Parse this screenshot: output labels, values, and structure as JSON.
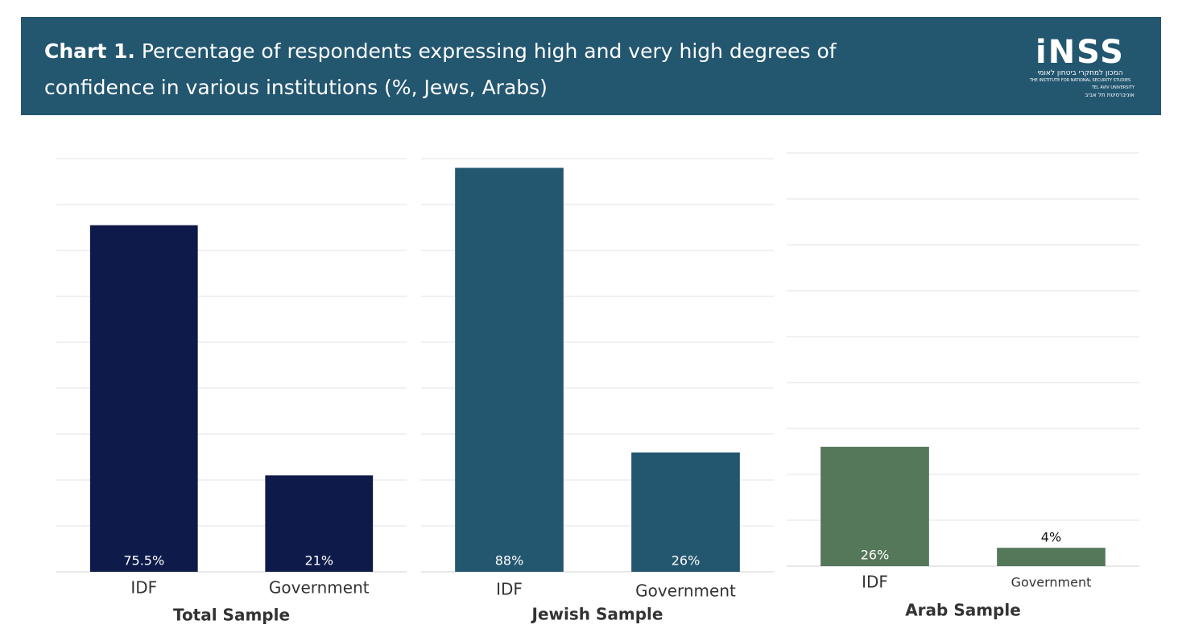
{
  "header": {
    "label": "Chart 1.",
    "title": "Percentage of respondents expressing high and very high degrees of confidence in various institutions (%, Jews, Arabs)",
    "logo": {
      "name": "iNSS",
      "hebrew": "המכון למחקרי ביטחון לאומי",
      "english": "THE INSTITUTE FOR NATIONAL SECURITY STUDIES",
      "university": "TEL AVIV UNIVERSITY",
      "university_hebrew": "אוניברסיטת תל אביב"
    }
  },
  "chart_data": [
    {
      "type": "bar",
      "title": "Total Sample",
      "categories": [
        "IDF",
        "Government"
      ],
      "values": [
        75.5,
        21
      ],
      "value_labels": [
        "75.5%",
        "21%"
      ],
      "color": "#0e1a4a",
      "ylim": [
        0,
        90
      ],
      "yticks": [
        0,
        10,
        20,
        30,
        40,
        50,
        60,
        70,
        80,
        90
      ],
      "grid": true
    },
    {
      "type": "bar",
      "title": "Jewish Sample",
      "categories": [
        "IDF",
        "Government"
      ],
      "values": [
        88,
        26
      ],
      "value_labels": [
        "88%",
        "26%"
      ],
      "color": "#23566f",
      "ylim": [
        0,
        90
      ],
      "yticks": [
        0,
        10,
        20,
        30,
        40,
        50,
        60,
        70,
        80,
        90
      ],
      "grid": true
    },
    {
      "type": "bar",
      "title": "Arab Sample",
      "categories": [
        "IDF",
        "Government"
      ],
      "values": [
        26,
        4
      ],
      "value_labels": [
        "26%",
        "4%"
      ],
      "color": "#55775a",
      "ylim": [
        0,
        90
      ],
      "yticks": [
        0,
        10,
        20,
        30,
        40,
        50,
        60,
        70,
        80,
        90
      ],
      "grid": true
    }
  ]
}
